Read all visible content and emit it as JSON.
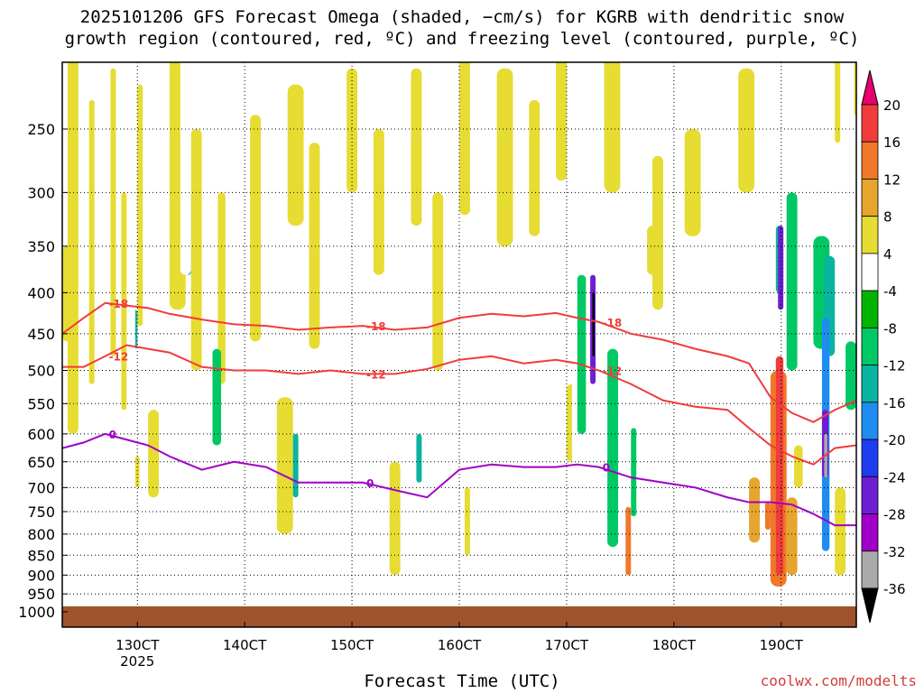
{
  "title_line1": "2025101206 GFS Forecast Omega (shaded, −cm/s) for KGRB with dendritic snow",
  "title_line2": "growth region (contoured, red, ºC) and freezing level (contoured, purple, ºC)",
  "xaxis_title": "Forecast Time (UTC)",
  "credit": "coolwx.com/modelts",
  "chart_data": {
    "type": "heatmap",
    "x_ticks": [
      "130CT",
      "140CT",
      "150CT",
      "160CT",
      "170CT",
      "180CT",
      "190CT"
    ],
    "x_year_label": "2025",
    "xlim_days": [
      12.3,
      19.7
    ],
    "y_ticks": [
      250,
      300,
      350,
      400,
      450,
      500,
      550,
      600,
      650,
      700,
      750,
      800,
      850,
      900,
      950,
      1000
    ],
    "y_scale": "log pressure (hPa), inverted",
    "ylim": [
      200,
      1050
    ],
    "grid": true,
    "colorbar": {
      "labels": [
        "20",
        "16",
        "12",
        "8",
        "4",
        "-4",
        "-8",
        "-12",
        "-16",
        "-20",
        "-24",
        "-28",
        "-32",
        "-36"
      ],
      "colors": [
        "#e8006e",
        "#f03c3c",
        "#f07828",
        "#e6a52d",
        "#e6dc32",
        "#ffffff",
        "#00b400",
        "#00c864",
        "#0ab4a0",
        "#1e8cf0",
        "#1e3cf0",
        "#6e1ed2",
        "#a000c8",
        "#aaaaaa",
        "#000000"
      ]
    },
    "contours": [
      {
        "label": "-18",
        "color": "#f03c3c",
        "x": [
          12.3,
          12.5,
          12.7,
          12.9,
          13.1,
          13.3,
          13.6,
          13.9,
          14.2,
          14.5,
          14.8,
          15.1,
          15.4,
          15.7,
          16.0,
          16.3,
          16.6,
          16.9,
          17.1,
          17.3,
          17.6,
          17.9,
          18.2,
          18.5,
          18.7,
          18.9,
          19.1,
          19.3,
          19.5,
          19.7
        ],
        "y": [
          450,
          430,
          412,
          415,
          418,
          425,
          432,
          438,
          440,
          445,
          442,
          440,
          445,
          442,
          430,
          425,
          428,
          424,
          430,
          435,
          450,
          458,
          470,
          480,
          490,
          540,
          565,
          580,
          560,
          545
        ]
      },
      {
        "label": "-12",
        "color": "#f03c3c",
        "x": [
          12.3,
          12.5,
          12.7,
          12.9,
          13.1,
          13.3,
          13.6,
          13.9,
          14.2,
          14.5,
          14.8,
          15.1,
          15.4,
          15.7,
          16.0,
          16.3,
          16.6,
          16.9,
          17.1,
          17.3,
          17.6,
          17.9,
          18.2,
          18.5,
          18.7,
          18.9,
          19.1,
          19.3,
          19.5,
          19.7
        ],
        "y": [
          495,
          495,
          480,
          465,
          470,
          475,
          495,
          500,
          500,
          505,
          500,
          505,
          505,
          498,
          485,
          480,
          490,
          485,
          490,
          500,
          520,
          545,
          555,
          560,
          590,
          620,
          640,
          655,
          625,
          620
        ]
      },
      {
        "label": "0",
        "color": "#a000c8",
        "x": [
          12.3,
          12.5,
          12.7,
          12.9,
          13.1,
          13.3,
          13.6,
          13.9,
          14.2,
          14.5,
          14.8,
          15.1,
          15.4,
          15.7,
          16.0,
          16.3,
          16.6,
          16.9,
          17.1,
          17.3,
          17.6,
          17.9,
          18.2,
          18.5,
          18.7,
          18.9,
          19.1,
          19.3,
          19.5,
          19.7
        ],
        "y": [
          625,
          615,
          600,
          610,
          620,
          640,
          665,
          650,
          660,
          690,
          690,
          690,
          705,
          720,
          665,
          655,
          660,
          660,
          655,
          660,
          680,
          690,
          700,
          720,
          730,
          730,
          735,
          755,
          780,
          780
        ]
      }
    ]
  }
}
